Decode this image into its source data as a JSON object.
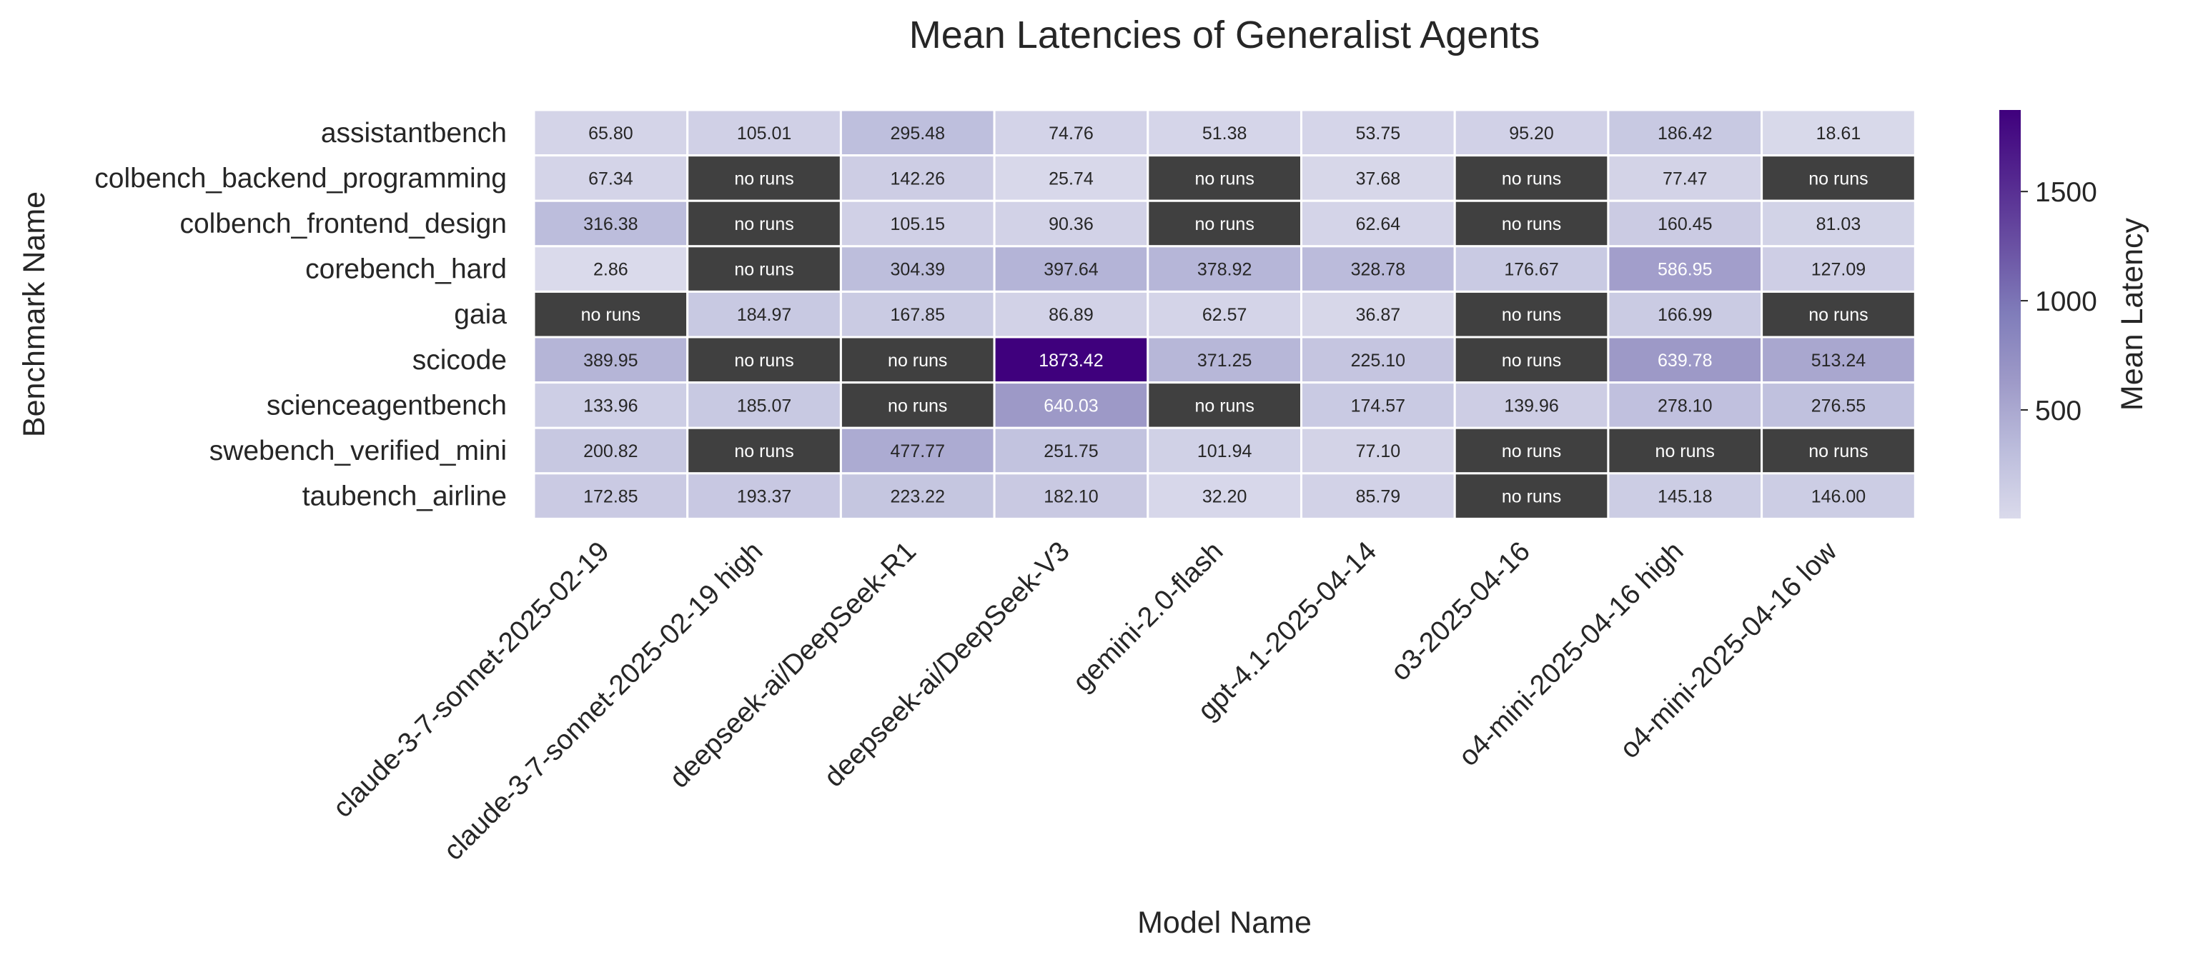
{
  "chart_data": {
    "type": "heatmap",
    "title": "Mean Latencies of Generalist Agents",
    "xlabel": "Model Name",
    "ylabel": "Benchmark Name",
    "x": [
      "claude-3-7-sonnet-2025-02-19",
      "claude-3-7-sonnet-2025-02-19 high",
      "deepseek-ai/DeepSeek-R1",
      "deepseek-ai/DeepSeek-V3",
      "gemini-2.0-flash",
      "gpt-4.1-2025-04-14",
      "o3-2025-04-16",
      "o4-mini-2025-04-16 high",
      "o4-mini-2025-04-16 low"
    ],
    "y": [
      "assistantbench",
      "colbench_backend_programming",
      "colbench_frontend_design",
      "corebench_hard",
      "gaia",
      "scicode",
      "scienceagentbench",
      "swebench_verified_mini",
      "taubench_airline"
    ],
    "values": [
      [
        65.8,
        105.01,
        295.48,
        74.76,
        51.38,
        53.75,
        95.2,
        186.42,
        18.61
      ],
      [
        67.34,
        null,
        142.26,
        25.74,
        null,
        37.68,
        null,
        77.47,
        null
      ],
      [
        316.38,
        null,
        105.15,
        90.36,
        null,
        62.64,
        null,
        160.45,
        81.03
      ],
      [
        2.86,
        null,
        304.39,
        397.64,
        378.92,
        328.78,
        176.67,
        586.95,
        127.09
      ],
      [
        null,
        184.97,
        167.85,
        86.89,
        62.57,
        36.87,
        null,
        166.99,
        null
      ],
      [
        389.95,
        null,
        null,
        1873.42,
        371.25,
        225.1,
        null,
        639.78,
        513.24
      ],
      [
        133.96,
        185.07,
        null,
        640.03,
        null,
        174.57,
        139.96,
        278.1,
        276.55
      ],
      [
        200.82,
        null,
        477.77,
        251.75,
        101.94,
        77.1,
        null,
        null,
        null
      ],
      [
        172.85,
        193.37,
        223.22,
        182.1,
        32.2,
        85.79,
        null,
        145.18,
        146.0
      ]
    ],
    "missing_label": "no runs",
    "missing_color": "#404040",
    "colormap": "Purples",
    "colormap_stops": [
      "#dadaeb",
      "#bcbddc",
      "#9e9ac8",
      "#807dba",
      "#6a51a3",
      "#54278f",
      "#3f007d"
    ],
    "vmin": 2.86,
    "vmax": 1873.42,
    "colorbar": {
      "label": "Mean Latency",
      "ticks": [
        500,
        1000,
        1500
      ]
    },
    "grid": false,
    "legend": "none"
  }
}
